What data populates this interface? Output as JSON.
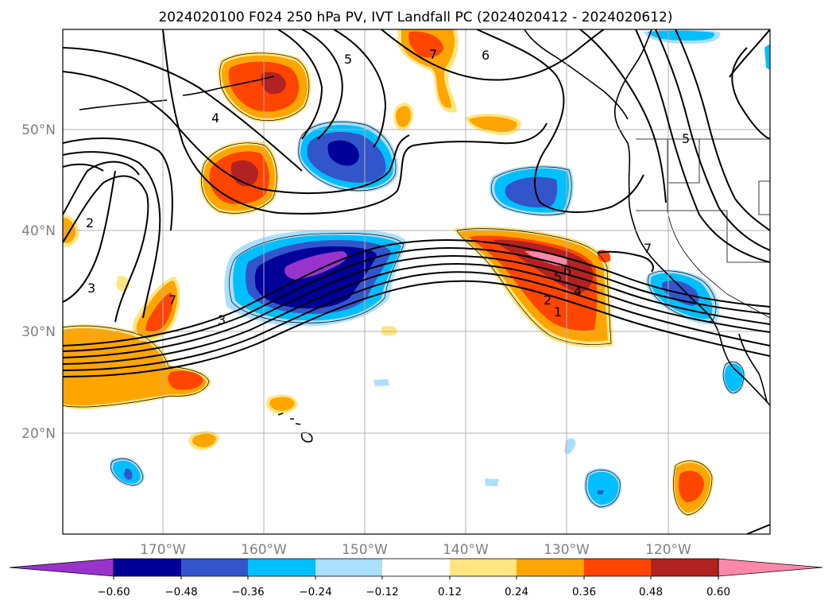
{
  "title": "2024020100 F024 250 hPa PV, IVT Landfall PC (2024020412 - 2024020612)",
  "lat_labels": [
    "50°N",
    "40°N",
    "30°N",
    "20°N"
  ],
  "lon_labels": [
    "170°W",
    "160°W",
    "150°W",
    "140°W",
    "130°W",
    "120°W"
  ],
  "contour_labels": [
    "1",
    "2",
    "3",
    "4",
    "5",
    "6",
    "7"
  ],
  "colorbar": {
    "ticks": [
      "−0.60",
      "−0.48",
      "−0.36",
      "−0.24",
      "−0.12",
      "0.12",
      "0.24",
      "0.36",
      "0.48",
      "0.60"
    ],
    "colors": [
      "#9933cc",
      "#000099",
      "#3355cc",
      "#00bfff",
      "#aadfff",
      "#ffffff",
      "#ffe680",
      "#ffa500",
      "#ff4500",
      "#b22222",
      "#ff88aa"
    ]
  },
  "map": {
    "lat_range": [
      10,
      60
    ],
    "lon_range": [
      -180,
      -110
    ],
    "grid": true
  }
}
